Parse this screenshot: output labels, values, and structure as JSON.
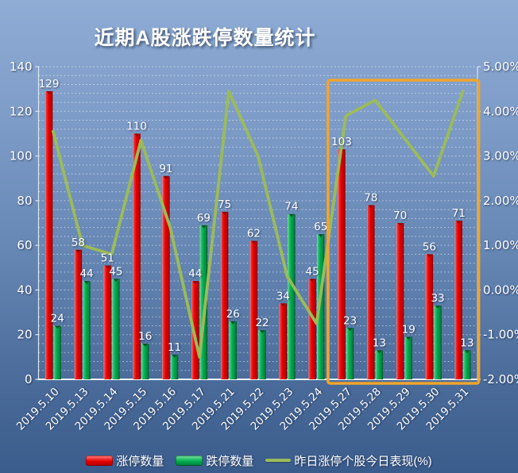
{
  "title": "近期A股涨跌停数量统计",
  "legend": {
    "up_label": "涨停数量",
    "down_label": "跌停数量",
    "line_label": "昨日涨停个股今日表现(%)"
  },
  "colors": {
    "background_top": "#8EACD4",
    "background_bottom": "#3A5C8C",
    "up_bar": "#E60000",
    "down_bar": "#00B050",
    "performance_line": "#9BBB59",
    "highlight_box": "#F1A42B",
    "gridline": "#FFFFFF",
    "text": "#FFFFFF"
  },
  "chart_data": {
    "type": "bar-line-combo",
    "categories": [
      "2019.5.10",
      "2019.5.13",
      "2019.5.14",
      "2019.5.15",
      "2019.5.16",
      "2019.5.17",
      "2019.5.21",
      "2019.5.22",
      "2019.5.23",
      "2019.5.24",
      "2019.5.27",
      "2019.5.28",
      "2019.5.29",
      "2019.5.30",
      "2019.5.31"
    ],
    "series": [
      {
        "name": "涨停数量",
        "type": "bar",
        "axis": "left",
        "color": "#E60000",
        "values": [
          129,
          58,
          51,
          110,
          91,
          44,
          75,
          62,
          34,
          45,
          103,
          78,
          70,
          56,
          71
        ]
      },
      {
        "name": "跌停数量",
        "type": "bar",
        "axis": "left",
        "color": "#00B050",
        "values": [
          24,
          44,
          45,
          16,
          11,
          69,
          26,
          22,
          74,
          65,
          23,
          13,
          19,
          33,
          13
        ]
      },
      {
        "name": "昨日涨停个股今日表现(%)",
        "type": "line",
        "axis": "right",
        "color": "#9BBB59",
        "values": [
          3.55,
          1.0,
          0.8,
          3.35,
          1.4,
          -1.5,
          4.45,
          3.0,
          0.3,
          -0.75,
          3.9,
          4.25,
          3.4,
          2.55,
          4.45
        ]
      }
    ],
    "left_axis": {
      "min": 0,
      "max": 140,
      "step": 20,
      "labels": [
        "140",
        "120",
        "100",
        "80",
        "60",
        "40",
        "20",
        "0"
      ]
    },
    "right_axis": {
      "min": -2,
      "max": 5,
      "step": 1,
      "labels": [
        "5.00%",
        "4.00%",
        "3.00%",
        "2.00%",
        "1.00%",
        "0.00%",
        "-1.00%",
        "-2.00%"
      ]
    },
    "grid": "minor-dotted-horizontal",
    "value_labels_shown": true,
    "legend_position": "bottom",
    "highlight_range": {
      "from": "2019.5.27",
      "to": "2019.5.31",
      "style": "orange-box"
    }
  }
}
